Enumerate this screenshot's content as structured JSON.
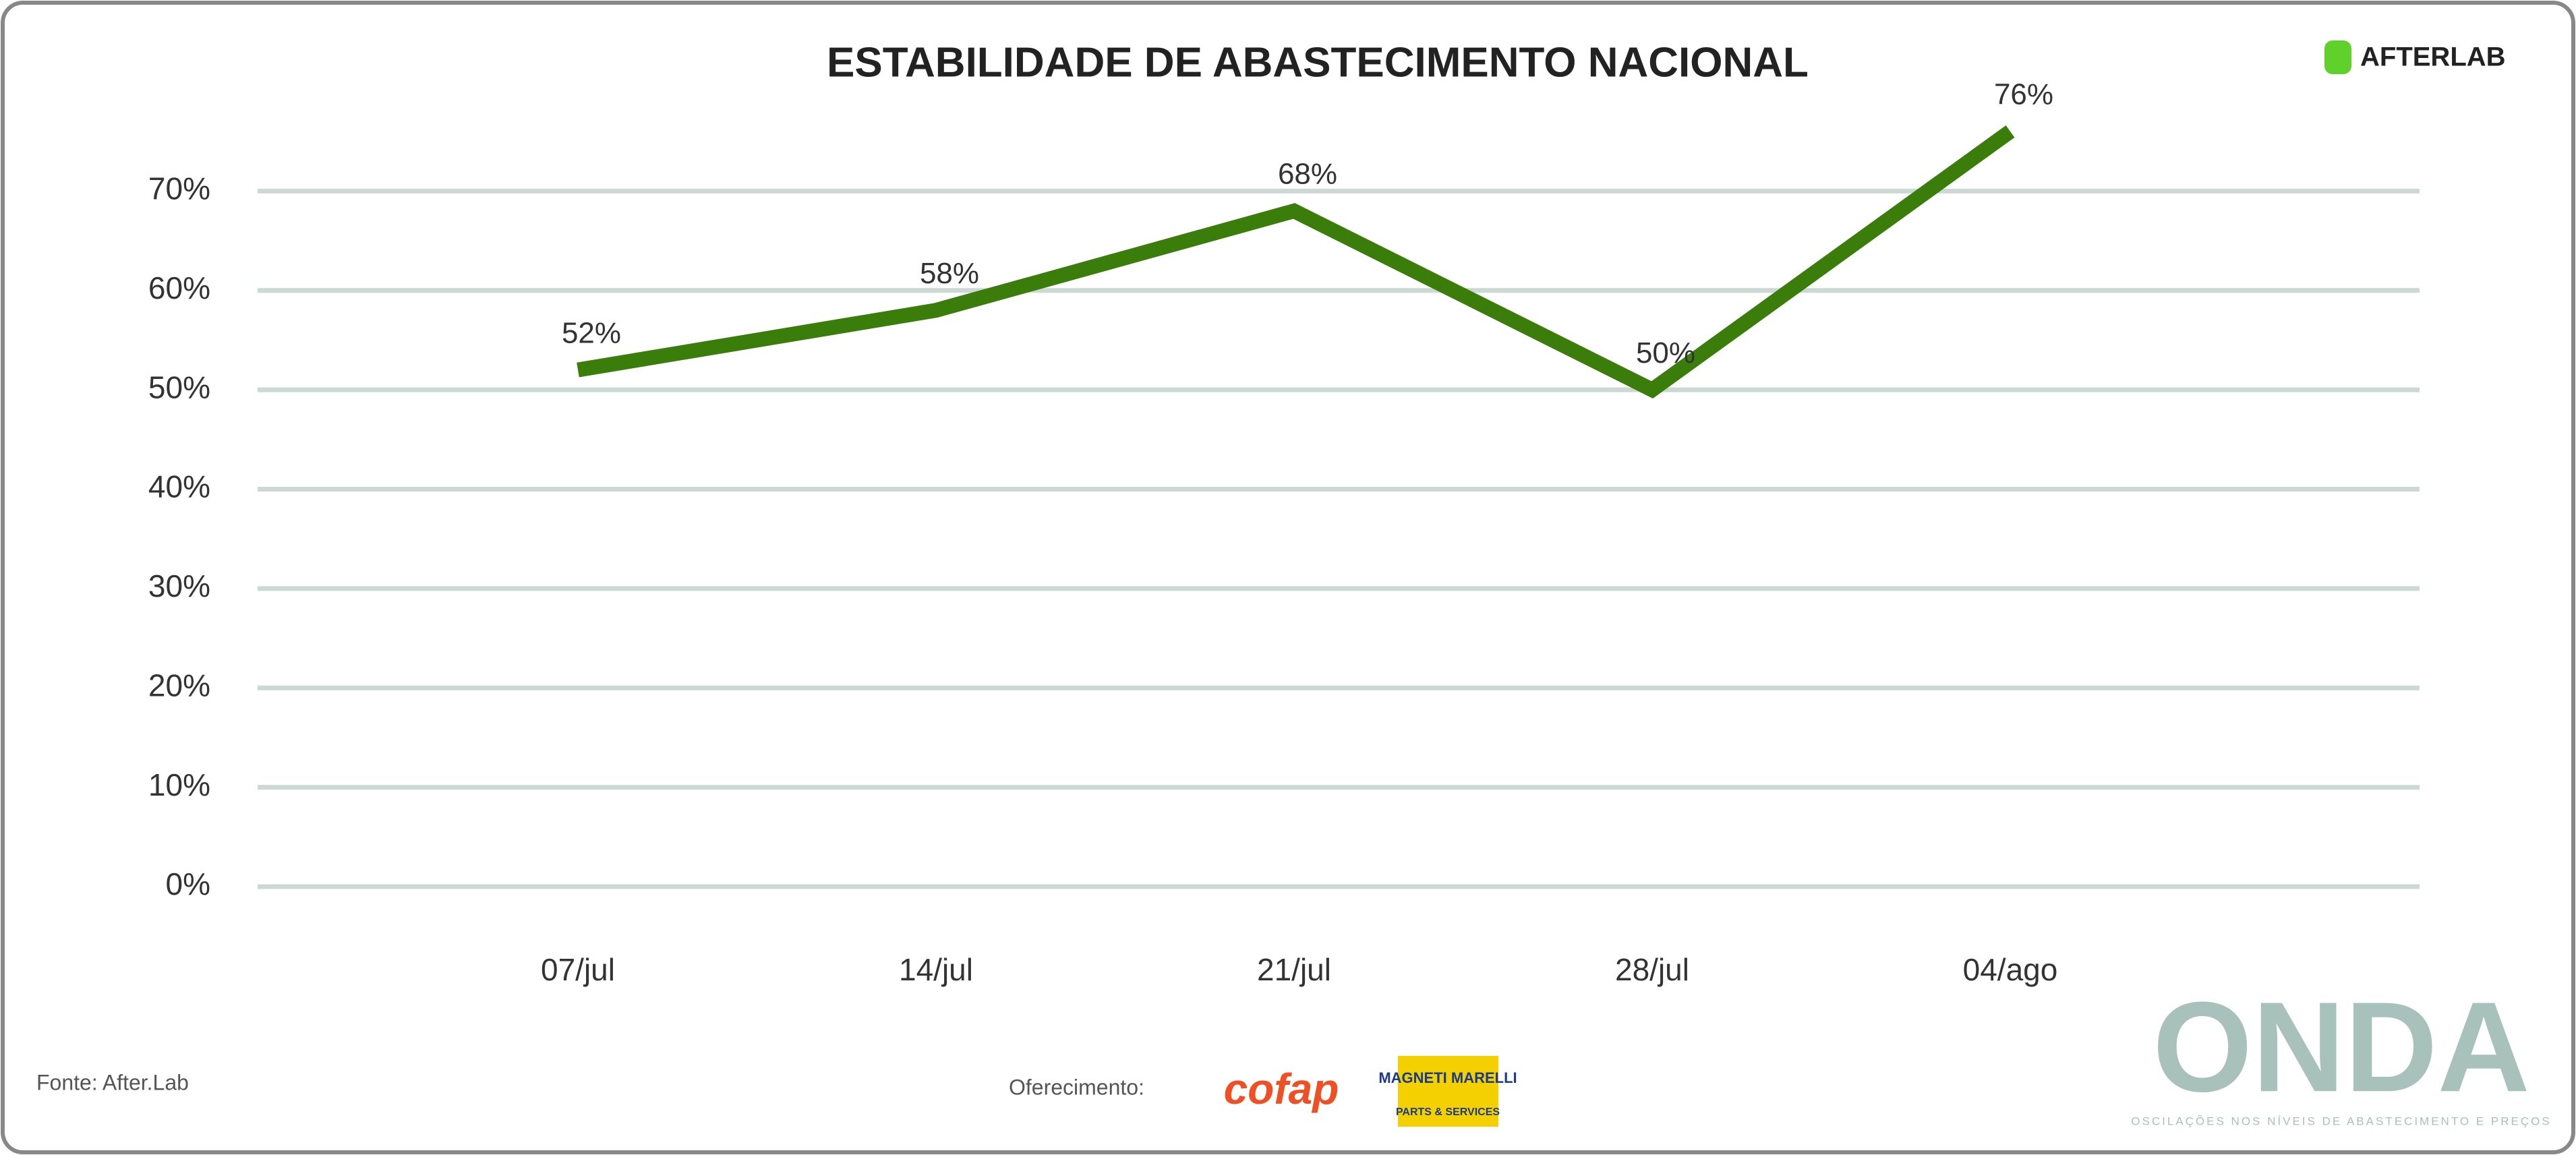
{
  "chart_data": {
    "type": "line",
    "title": "ESTABILIDADE DE ABASTECIMENTO NACIONAL",
    "categories": [
      "07/jul",
      "14/jul",
      "21/jul",
      "28/jul",
      "04/ago"
    ],
    "values": [
      52,
      58,
      68,
      50,
      76
    ],
    "value_labels": [
      "52%",
      "58%",
      "68%",
      "50%",
      "76%"
    ],
    "color": "#3a7d0a",
    "ylim": [
      0,
      80
    ],
    "yticks": [
      {
        "value": 0,
        "label": "0%"
      },
      {
        "value": 10,
        "label": "10%"
      },
      {
        "value": 20,
        "label": "20%"
      },
      {
        "value": 30,
        "label": "30%"
      },
      {
        "value": 40,
        "label": "40%"
      },
      {
        "value": 50,
        "label": "50%"
      },
      {
        "value": 60,
        "label": "60%"
      },
      {
        "value": 70,
        "label": "70%"
      }
    ],
    "grid": true,
    "brand_logo": "AFTERLAB",
    "source": "Fonte: After.Lab",
    "sponsor_label": "Oferecimento:",
    "sponsors": [
      "cofap",
      "MAGNETI MARELLI",
      "PARTS & SERVICES"
    ],
    "series_brand": "ONDA",
    "series_tagline": "OSCILAÇÕES NOS NÍVEIS DE ABASTECIMENTO E PREÇOS"
  }
}
